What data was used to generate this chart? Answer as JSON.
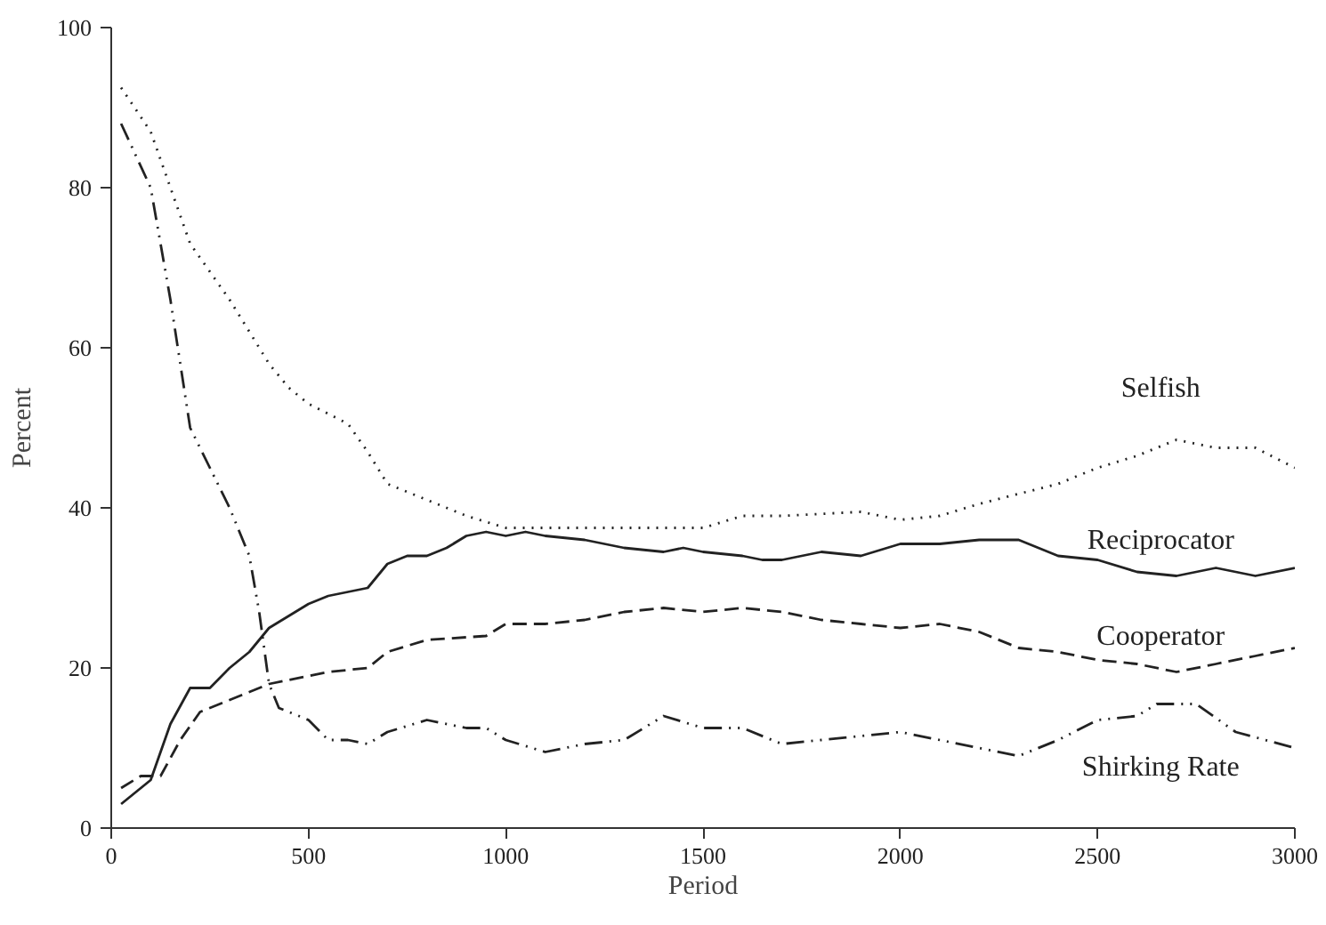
{
  "chart_data": {
    "type": "line",
    "xlabel": "Period",
    "ylabel": "Percent",
    "xlim": [
      0,
      3000
    ],
    "ylim": [
      0,
      100
    ],
    "xticks": [
      0,
      500,
      1000,
      1500,
      2000,
      2500,
      3000
    ],
    "yticks": [
      0,
      20,
      40,
      60,
      80,
      100
    ],
    "grid": false,
    "series": [
      {
        "name": "Selfish",
        "color": "#222222",
        "line_style": "dotted",
        "x": [
          25,
          100,
          150,
          200,
          300,
          400,
          450,
          500,
          600,
          650,
          700,
          800,
          900,
          1000,
          1200,
          1400,
          1500,
          1600,
          1700,
          1900,
          2000,
          2100,
          2200,
          2400,
          2500,
          2600,
          2700,
          2800,
          2900,
          3000
        ],
        "values": [
          92.5,
          87,
          80,
          73,
          66,
          58,
          55,
          53,
          50.5,
          47,
          43,
          41,
          39,
          37.5,
          37.5,
          37.5,
          37.5,
          39,
          39,
          39.5,
          38.5,
          39,
          40.5,
          43,
          45,
          46.5,
          48.5,
          47.5,
          47.5,
          45
        ]
      },
      {
        "name": "Reciprocator",
        "color": "#222222",
        "line_style": "solid",
        "x": [
          25,
          100,
          150,
          200,
          250,
          300,
          350,
          400,
          450,
          500,
          550,
          600,
          650,
          700,
          750,
          800,
          850,
          900,
          950,
          1000,
          1050,
          1100,
          1200,
          1300,
          1400,
          1450,
          1500,
          1600,
          1650,
          1700,
          1800,
          1900,
          2000,
          2100,
          2200,
          2300,
          2400,
          2500,
          2600,
          2700,
          2800,
          2900,
          3000
        ],
        "values": [
          3,
          6,
          13,
          17.5,
          17.5,
          20,
          22,
          25,
          26.5,
          28,
          29,
          29.5,
          30,
          33,
          34,
          34,
          35,
          36.5,
          37,
          36.5,
          37,
          36.5,
          36,
          35,
          34.5,
          35,
          34.5,
          34,
          33.5,
          33.5,
          34.5,
          34,
          35.5,
          35.5,
          36,
          36,
          34,
          33.5,
          32,
          31.5,
          32.5,
          31.5,
          32.5
        ]
      },
      {
        "name": "Cooperator",
        "color": "#222222",
        "line_style": "dashed",
        "x": [
          25,
          75,
          125,
          175,
          225,
          300,
          400,
          500,
          550,
          650,
          700,
          800,
          950,
          1000,
          1100,
          1200,
          1300,
          1400,
          1500,
          1600,
          1700,
          1800,
          1900,
          2000,
          2100,
          2200,
          2300,
          2400,
          2500,
          2600,
          2700,
          2800,
          2900,
          3000
        ],
        "values": [
          5,
          6.5,
          6.5,
          11,
          14.5,
          16,
          18,
          19,
          19.5,
          20,
          22,
          23.5,
          24,
          25.5,
          25.5,
          26,
          27,
          27.5,
          27,
          27.5,
          27,
          26,
          25.5,
          25,
          25.5,
          24.5,
          22.5,
          22,
          21,
          20.5,
          19.5,
          20.5,
          21.5,
          22.5
        ]
      },
      {
        "name": "Shirking Rate",
        "color": "#222222",
        "line_style": "dashdot",
        "x": [
          25,
          100,
          150,
          200,
          250,
          300,
          350,
          375,
          400,
          425,
          500,
          550,
          600,
          650,
          700,
          800,
          900,
          950,
          1000,
          1100,
          1200,
          1300,
          1400,
          1500,
          1600,
          1700,
          1800,
          1900,
          2000,
          2100,
          2200,
          2300,
          2400,
          2500,
          2600,
          2650,
          2750,
          2850,
          3000
        ],
        "values": [
          88,
          80,
          66,
          50,
          45,
          40,
          34,
          27,
          18,
          15,
          13.5,
          11,
          11,
          10.5,
          12,
          13.5,
          12.5,
          12.5,
          11,
          9.5,
          10.5,
          11,
          14,
          12.5,
          12.5,
          10.5,
          11,
          11.5,
          12,
          11,
          10,
          9,
          11,
          13.5,
          14,
          15.5,
          15.5,
          12,
          10
        ]
      }
    ]
  }
}
